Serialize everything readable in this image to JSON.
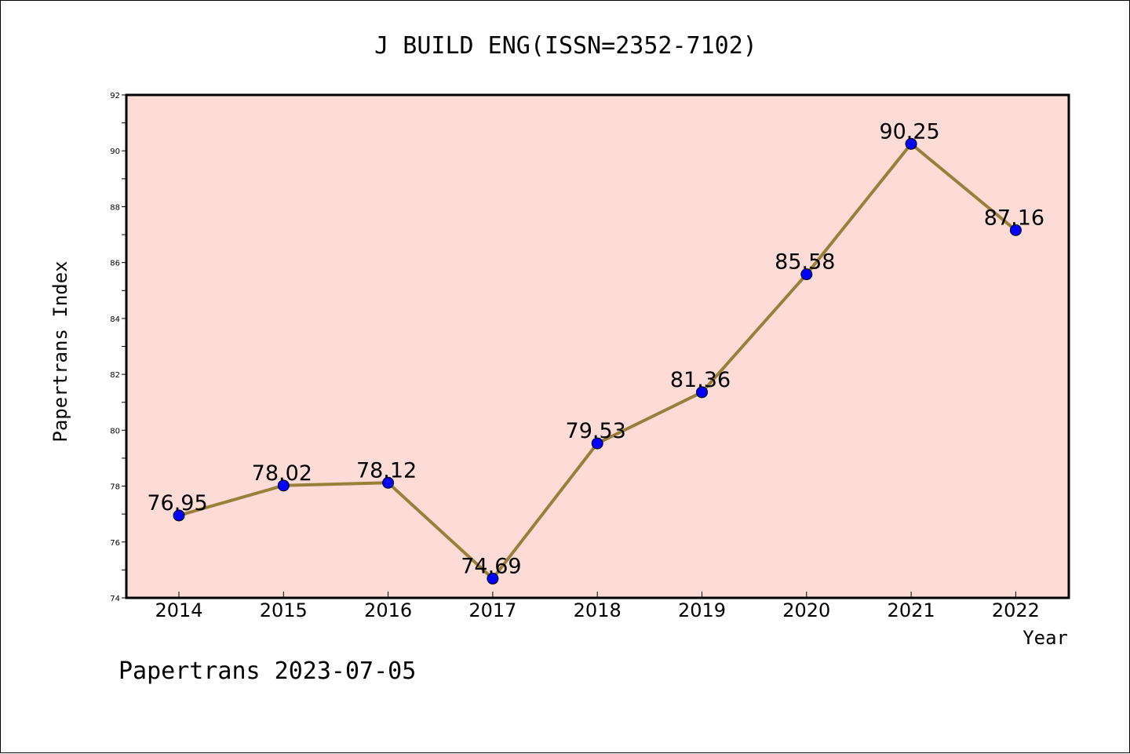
{
  "chart_data": {
    "type": "line",
    "title": "J BUILD ENG(ISSN=2352-7102)",
    "xlabel": "Year",
    "ylabel": "Papertrans Index",
    "categories": [
      "2014",
      "2015",
      "2016",
      "2017",
      "2018",
      "2019",
      "2020",
      "2021",
      "2022"
    ],
    "series": [
      {
        "values": [
          76.95,
          78.02,
          78.12,
          74.69,
          79.53,
          81.36,
          85.58,
          90.25,
          87.16
        ],
        "labels": [
          "76.95",
          "78.02",
          "78.12",
          "74.69",
          "79.53",
          "81.36",
          "85.58",
          "90.25",
          "87.16"
        ]
      }
    ],
    "ylim": [
      74,
      92
    ],
    "yticks": [
      "74",
      "76",
      "78",
      "80",
      "82",
      "84",
      "86",
      "88",
      "90",
      "92"
    ],
    "grid": false,
    "legend": "none",
    "colors": {
      "plot_background": "#fddcd8",
      "line": "#9a7f3a",
      "marker": "#0000ff"
    }
  },
  "footer": {
    "text": "Papertrans 2023-07-05"
  }
}
